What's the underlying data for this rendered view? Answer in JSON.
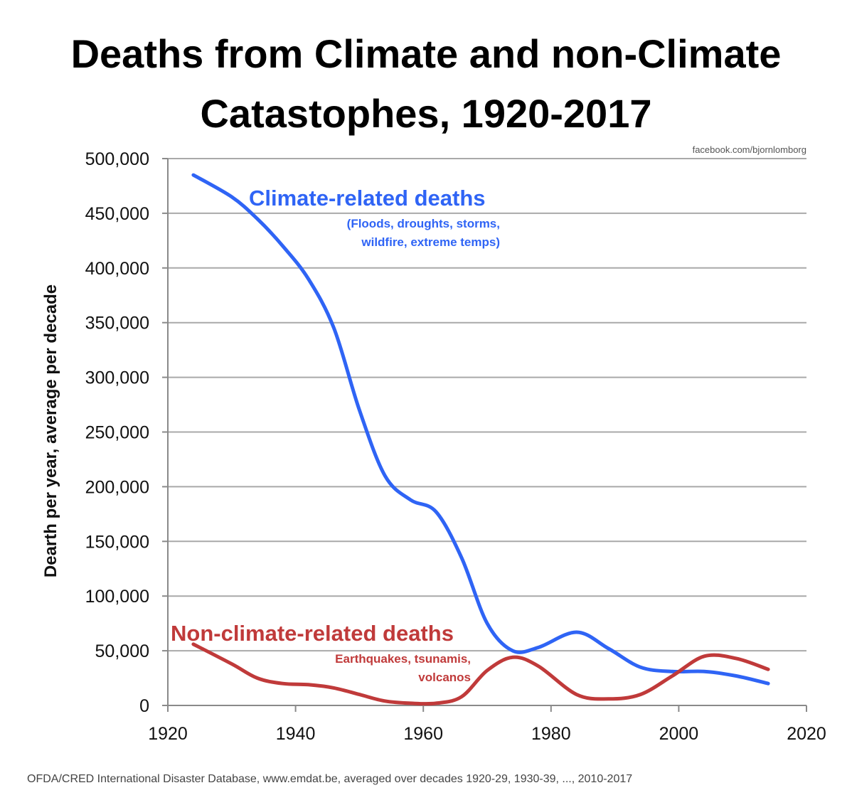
{
  "chart_data": {
    "type": "line",
    "title": [
      "Deaths from Climate and non-Climate",
      "Catastophes, 1920-2017"
    ],
    "ylabel": "Dearth per year, average per decade",
    "xlabel": "",
    "xlim": [
      1920,
      2020
    ],
    "ylim": [
      0,
      500000
    ],
    "x_ticks": [
      1920,
      1940,
      1960,
      1980,
      2000,
      2020
    ],
    "y_ticks": [
      0,
      50000,
      100000,
      150000,
      200000,
      250000,
      300000,
      350000,
      400000,
      450000,
      500000
    ],
    "y_tick_labels": [
      "0",
      "50,000",
      "100,000",
      "150,000",
      "200,000",
      "250,000",
      "300,000",
      "350,000",
      "400,000",
      "450,000",
      "500,000"
    ],
    "x_tick_labels": [
      "1920",
      "1940",
      "1960",
      "1980",
      "2000",
      "2020"
    ],
    "grid": "horizontal",
    "series": [
      {
        "name": "Climate-related deaths",
        "note": [
          "(Floods, droughts, storms,",
          "wildfire, extreme temps)"
        ],
        "color": "#2f64f5",
        "x": [
          1924,
          1930,
          1934,
          1938,
          1942,
          1946,
          1950,
          1954,
          1958,
          1962,
          1966,
          1970,
          1974,
          1978,
          1984,
          1989,
          1994,
          1999,
          2004,
          2009,
          2014
        ],
        "y": [
          485000,
          465000,
          445000,
          420000,
          390000,
          345000,
          270000,
          210000,
          188000,
          177000,
          135000,
          75000,
          50000,
          53000,
          67000,
          52000,
          35000,
          31000,
          31000,
          27000,
          20000
        ]
      },
      {
        "name": "Non-climate-related deaths",
        "note": [
          "Earthquakes, tsunamis,",
          "volcanos"
        ],
        "color": "#c03a3a",
        "x": [
          1924,
          1930,
          1934,
          1938,
          1942,
          1946,
          1950,
          1954,
          1958,
          1962,
          1966,
          1970,
          1974,
          1978,
          1984,
          1989,
          1994,
          1999,
          2004,
          2009,
          2014
        ],
        "y": [
          56000,
          38000,
          25000,
          20000,
          19000,
          16000,
          10000,
          4000,
          2000,
          2000,
          8000,
          32000,
          44000,
          36000,
          10000,
          6000,
          10000,
          27000,
          45000,
          43000,
          33000
        ]
      }
    ]
  },
  "credit": "facebook.com/bjornlomborg",
  "source": "OFDA/CRED International Disaster Database, www.emdat.be, averaged over decades 1920-29, 1930-39, ..., 2010-2017"
}
